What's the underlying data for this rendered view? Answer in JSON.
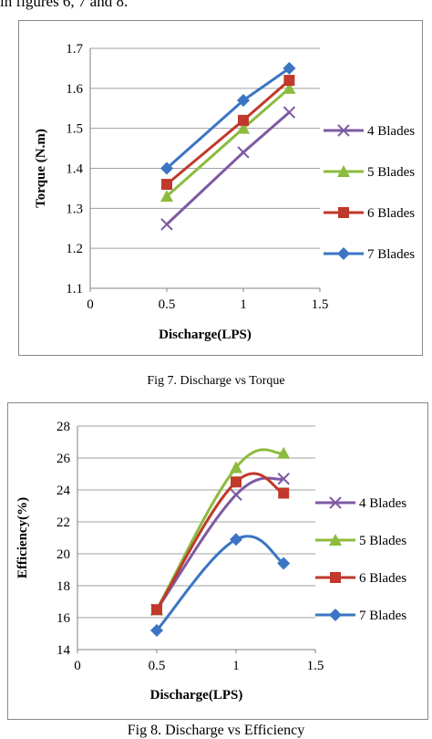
{
  "intro_text": "in figures 6, 7 and 8.",
  "captions": {
    "fig7": "Fig 7. Discharge vs Torque",
    "fig8": "Fig 8. Discharge vs Efficiency"
  },
  "chart_data": [
    {
      "type": "line",
      "caption": "Fig 7. Discharge vs Torque",
      "xlabel": "Discharge(LPS)",
      "ylabel": "Torque (N.m)",
      "xlim": [
        0,
        1.5
      ],
      "ylim": [
        1.1,
        1.7
      ],
      "xticks": [
        "0",
        "0.5",
        "1",
        "1.5"
      ],
      "yticks": [
        "1.1",
        "1.2",
        "1.3",
        "1.4",
        "1.5",
        "1.6",
        "1.7"
      ],
      "grid": "horizontal",
      "legend_position": "right",
      "x": [
        0.5,
        1,
        1.3
      ],
      "series": [
        {
          "name": "4 Blades",
          "values": [
            1.26,
            1.44,
            1.54
          ],
          "color": "#7d5aa3",
          "marker": "x"
        },
        {
          "name": "5 Blades",
          "values": [
            1.33,
            1.5,
            1.6
          ],
          "color": "#8cbb3f",
          "marker": "triangle"
        },
        {
          "name": "6 Blades",
          "values": [
            1.36,
            1.52,
            1.62
          ],
          "color": "#c0392b",
          "marker": "square"
        },
        {
          "name": "7 Blades",
          "values": [
            1.4,
            1.57,
            1.65
          ],
          "color": "#3b75c4",
          "marker": "diamond"
        }
      ]
    },
    {
      "type": "line",
      "caption": "Fig 8. Discharge vs Efficiency",
      "xlabel": "Discharge(LPS)",
      "ylabel": "Efficiency(%)",
      "xlim": [
        0,
        1.5
      ],
      "ylim": [
        14,
        28
      ],
      "xticks": [
        "0",
        "0.5",
        "1",
        "1.5"
      ],
      "yticks": [
        "14",
        "16",
        "18",
        "20",
        "22",
        "24",
        "26",
        "28"
      ],
      "grid": "horizontal",
      "legend_position": "right",
      "smooth": true,
      "x": [
        0.5,
        1,
        1.3
      ],
      "series": [
        {
          "name": "4 Blades",
          "values": [
            16.5,
            23.7,
            24.7
          ],
          "color": "#7d5aa3",
          "marker": "x"
        },
        {
          "name": "5 Blades",
          "values": [
            16.5,
            25.4,
            26.3
          ],
          "color": "#8cbb3f",
          "marker": "triangle"
        },
        {
          "name": "6 Blades",
          "values": [
            16.5,
            24.5,
            23.8
          ],
          "color": "#c0392b",
          "marker": "square"
        },
        {
          "name": "7 Blades",
          "values": [
            15.2,
            20.9,
            19.4
          ],
          "color": "#3b75c4",
          "marker": "diamond"
        }
      ]
    }
  ]
}
